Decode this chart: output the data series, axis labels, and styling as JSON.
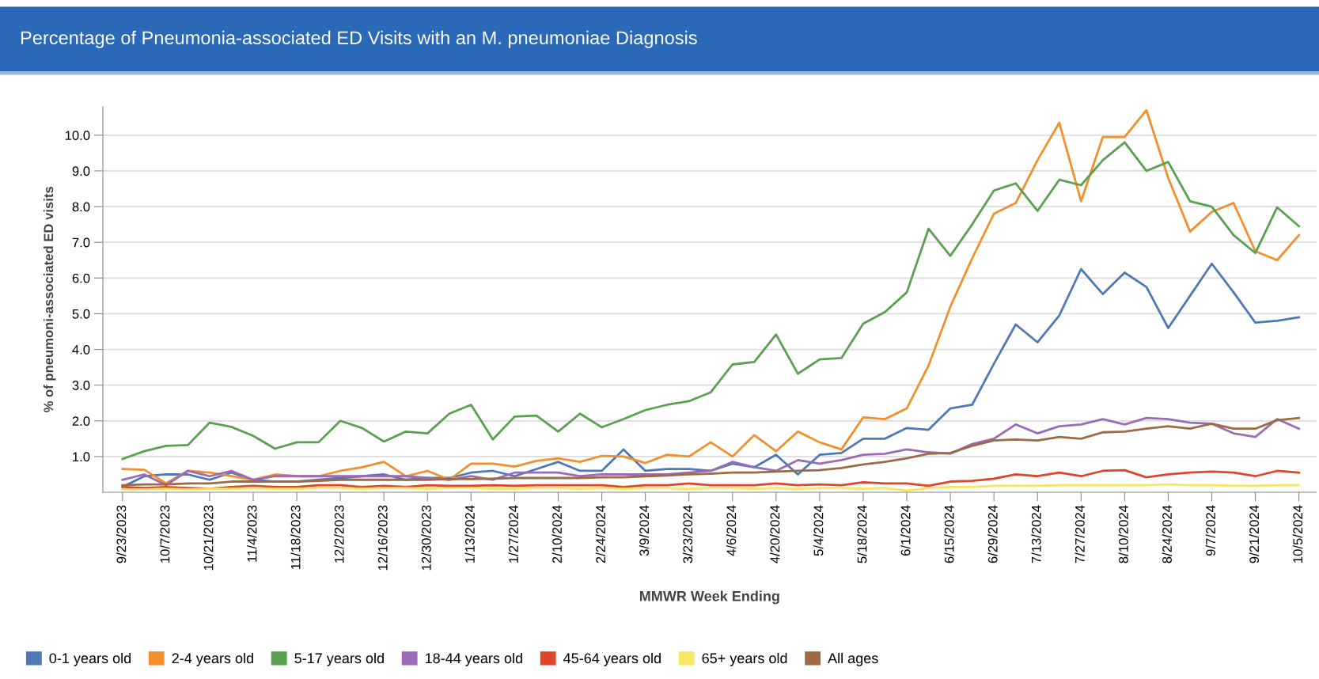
{
  "chart_data": {
    "type": "line",
    "title": "Percentage of Pneumonia-associated ED Visits with an M. pneumoniae Diagnosis",
    "xlabel": "MMWR Week Ending",
    "ylabel": "% of pneumoni-associated ED visits",
    "categories": [
      "9/23/2023",
      null,
      "10/7/2023",
      null,
      "10/21/2023",
      null,
      "11/4/2023",
      null,
      "11/18/2023",
      null,
      "12/2/2023",
      null,
      "12/16/2023",
      null,
      "12/30/2023",
      null,
      "1/13/2024",
      null,
      "1/27/2024",
      null,
      "2/10/2024",
      null,
      "2/24/2024",
      null,
      "3/9/2024",
      null,
      "3/23/2024",
      null,
      "4/6/2024",
      null,
      "4/20/2024",
      null,
      "5/4/2024",
      null,
      "5/18/2024",
      null,
      "6/1/2024",
      null,
      "6/15/2024",
      null,
      "6/29/2024",
      null,
      "7/13/2024",
      null,
      "7/27/2024",
      null,
      "8/10/2024",
      null,
      "8/24/2024",
      null,
      "9/7/2024",
      null,
      "9/21/2024",
      null,
      "10/5/2024"
    ],
    "ylim": [
      0,
      10.8
    ],
    "yticks": [
      {
        "value": 1,
        "label": "1.0"
      },
      {
        "value": 2,
        "label": "2.0"
      },
      {
        "value": 3,
        "label": "3.0"
      },
      {
        "value": 4,
        "label": "4.0"
      },
      {
        "value": 5,
        "label": "5.0"
      },
      {
        "value": 6,
        "label": "6.0"
      },
      {
        "value": 7,
        "label": "7.0"
      },
      {
        "value": 8,
        "label": "8.0"
      },
      {
        "value": 9,
        "label": "9.0"
      },
      {
        "value": 10,
        "label": "10.0"
      }
    ],
    "grid": "y",
    "legend": "bottom left",
    "marker": "none",
    "line_style": "solid",
    "series": [
      {
        "name": "0-1 years old",
        "color": "#4e79b5",
        "values": [
          0.15,
          0.45,
          0.5,
          0.5,
          0.35,
          0.55,
          0.35,
          0.3,
          0.3,
          0.35,
          0.4,
          0.45,
          0.5,
          0.35,
          0.4,
          0.4,
          0.55,
          0.6,
          0.45,
          0.65,
          0.85,
          0.6,
          0.6,
          1.2,
          0.6,
          0.65,
          0.65,
          0.6,
          0.8,
          0.7,
          1.05,
          0.5,
          1.05,
          1.1,
          1.5,
          1.5,
          1.8,
          1.75,
          2.35,
          2.45,
          3.6,
          4.7,
          4.2,
          4.95,
          6.25,
          5.55,
          6.15,
          5.75,
          4.6,
          5.5,
          6.4,
          5.6,
          4.75,
          4.8,
          4.9
        ]
      },
      {
        "name": "2-4 years old",
        "color": "#f28e2b",
        "values": [
          0.65,
          0.63,
          0.25,
          0.6,
          0.55,
          0.45,
          0.35,
          0.5,
          0.45,
          0.45,
          0.6,
          0.7,
          0.85,
          0.45,
          0.6,
          0.35,
          0.8,
          0.8,
          0.72,
          0.88,
          0.95,
          0.85,
          1.02,
          1.0,
          0.82,
          1.05,
          1.0,
          1.4,
          1.0,
          1.6,
          1.15,
          1.7,
          1.4,
          1.2,
          2.1,
          2.05,
          2.35,
          3.55,
          5.2,
          6.55,
          7.8,
          8.1,
          9.3,
          10.35,
          8.15,
          9.95,
          9.95,
          10.7,
          8.8,
          7.3,
          7.85,
          8.1,
          6.75,
          6.5,
          7.2
        ]
      },
      {
        "name": "5-17 years old",
        "color": "#59a14f",
        "values": [
          0.93,
          1.15,
          1.3,
          1.32,
          1.95,
          1.83,
          1.58,
          1.22,
          1.4,
          1.4,
          2.0,
          1.8,
          1.42,
          1.7,
          1.65,
          2.2,
          2.45,
          1.48,
          2.12,
          2.15,
          1.7,
          2.2,
          1.82,
          2.05,
          2.3,
          2.45,
          2.55,
          2.8,
          3.58,
          3.65,
          4.42,
          3.32,
          3.72,
          3.76,
          4.72,
          5.05,
          5.6,
          7.38,
          6.62,
          7.5,
          8.45,
          8.65,
          7.88,
          8.75,
          8.6,
          9.3,
          9.8,
          9.0,
          9.25,
          8.15,
          8.0,
          7.2,
          6.7,
          7.98,
          7.45
        ]
      },
      {
        "name": "18-44 years old",
        "color": "#9b6bb5",
        "values": [
          0.35,
          0.5,
          0.2,
          0.6,
          0.45,
          0.6,
          0.35,
          0.45,
          0.45,
          0.45,
          0.45,
          0.45,
          0.45,
          0.45,
          0.4,
          0.35,
          0.45,
          0.35,
          0.55,
          0.55,
          0.55,
          0.45,
          0.5,
          0.5,
          0.5,
          0.5,
          0.55,
          0.6,
          0.85,
          0.7,
          0.6,
          0.9,
          0.8,
          0.9,
          1.05,
          1.08,
          1.2,
          1.12,
          1.08,
          1.35,
          1.5,
          1.9,
          1.65,
          1.85,
          1.9,
          2.05,
          1.9,
          2.08,
          2.05,
          1.95,
          1.92,
          1.65,
          1.55,
          2.05,
          1.78
        ]
      },
      {
        "name": "45-64 years old",
        "color": "#e0452c",
        "values": [
          0.15,
          0.12,
          0.15,
          0.12,
          0.1,
          0.15,
          0.18,
          0.15,
          0.15,
          0.2,
          0.2,
          0.15,
          0.18,
          0.15,
          0.2,
          0.18,
          0.18,
          0.2,
          0.18,
          0.2,
          0.2,
          0.2,
          0.2,
          0.15,
          0.2,
          0.2,
          0.25,
          0.2,
          0.2,
          0.2,
          0.25,
          0.2,
          0.22,
          0.2,
          0.28,
          0.25,
          0.25,
          0.18,
          0.3,
          0.32,
          0.38,
          0.5,
          0.45,
          0.55,
          0.45,
          0.6,
          0.62,
          0.42,
          0.5,
          0.55,
          0.58,
          0.55,
          0.45,
          0.6,
          0.55
        ]
      },
      {
        "name": "65+ years old",
        "color": "#f5e663",
        "values": [
          0.08,
          0.08,
          0.1,
          0.08,
          0.1,
          0.1,
          0.12,
          0.1,
          0.1,
          0.12,
          0.12,
          0.1,
          0.12,
          0.12,
          0.1,
          0.12,
          0.12,
          0.1,
          0.1,
          0.12,
          0.12,
          0.1,
          0.12,
          0.1,
          0.12,
          0.12,
          0.1,
          0.12,
          0.12,
          0.1,
          0.12,
          0.1,
          0.12,
          0.12,
          0.1,
          0.12,
          0.05,
          0.12,
          0.15,
          0.15,
          0.18,
          0.18,
          0.18,
          0.2,
          0.2,
          0.2,
          0.2,
          0.2,
          0.22,
          0.2,
          0.2,
          0.18,
          0.18,
          0.2,
          0.2
        ]
      },
      {
        "name": "All ages",
        "color": "#9c6b45",
        "values": [
          0.2,
          0.22,
          0.22,
          0.25,
          0.25,
          0.3,
          0.3,
          0.3,
          0.3,
          0.32,
          0.35,
          0.35,
          0.35,
          0.35,
          0.35,
          0.37,
          0.37,
          0.38,
          0.4,
          0.4,
          0.4,
          0.4,
          0.42,
          0.42,
          0.45,
          0.47,
          0.5,
          0.52,
          0.55,
          0.55,
          0.58,
          0.6,
          0.62,
          0.68,
          0.78,
          0.85,
          0.95,
          1.08,
          1.1,
          1.3,
          1.45,
          1.48,
          1.45,
          1.55,
          1.5,
          1.68,
          1.7,
          1.78,
          1.85,
          1.78,
          1.92,
          1.78,
          1.78,
          2.02,
          2.08
        ]
      }
    ]
  }
}
